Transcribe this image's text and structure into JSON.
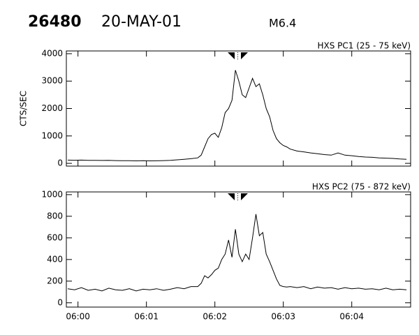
{
  "header": {
    "id": "26480",
    "date": "20-MAY-01",
    "class": "M6.4"
  },
  "chart_data": [
    {
      "type": "line",
      "title": "HXS PC1 (25 - 75 keV)",
      "y_label": "CTS/SEC",
      "x": [
        -0.15,
        -0.05,
        0.05,
        0.15,
        0.25,
        0.35,
        0.45,
        0.55,
        0.65,
        0.75,
        0.85,
        0.95,
        1.05,
        1.15,
        1.25,
        1.35,
        1.45,
        1.55,
        1.65,
        1.75,
        1.8,
        1.85,
        1.9,
        1.95,
        2.0,
        2.05,
        2.1,
        2.15,
        2.2,
        2.25,
        2.3,
        2.35,
        2.4,
        2.45,
        2.5,
        2.55,
        2.6,
        2.65,
        2.7,
        2.75,
        2.8,
        2.85,
        2.9,
        2.95,
        3.0,
        3.05,
        3.1,
        3.2,
        3.3,
        3.4,
        3.5,
        3.6,
        3.7,
        3.8,
        3.9,
        4.0,
        4.1,
        4.2,
        4.3,
        4.4,
        4.5,
        4.6,
        4.7,
        4.8
      ],
      "values": [
        120,
        115,
        118,
        110,
        112,
        105,
        108,
        100,
        95,
        98,
        92,
        96,
        90,
        94,
        100,
        110,
        130,
        150,
        170,
        200,
        300,
        600,
        900,
        1050,
        1100,
        950,
        1300,
        1850,
        2000,
        2300,
        3400,
        3000,
        2500,
        2400,
        2750,
        3100,
        2800,
        2900,
        2500,
        2000,
        1700,
        1200,
        900,
        750,
        650,
        600,
        520,
        450,
        420,
        380,
        350,
        320,
        300,
        380,
        300,
        280,
        250,
        230,
        220,
        200,
        190,
        180,
        160,
        150
      ],
      "color": "#000000",
      "xlim": [
        -0.17,
        4.86
      ],
      "ylim": [
        -100,
        4100
      ],
      "yticks": [
        0,
        1000,
        2000,
        3000,
        4000
      ]
    },
    {
      "type": "line",
      "title": "HXS PC2 (75 - 872 keV)",
      "x": [
        -0.15,
        -0.05,
        0.05,
        0.15,
        0.25,
        0.35,
        0.45,
        0.55,
        0.65,
        0.75,
        0.85,
        0.95,
        1.05,
        1.15,
        1.25,
        1.35,
        1.45,
        1.55,
        1.65,
        1.75,
        1.8,
        1.85,
        1.9,
        1.95,
        2.0,
        2.05,
        2.1,
        2.15,
        2.2,
        2.25,
        2.3,
        2.35,
        2.4,
        2.45,
        2.5,
        2.55,
        2.6,
        2.65,
        2.7,
        2.75,
        2.8,
        2.85,
        2.9,
        2.95,
        3.0,
        3.05,
        3.1,
        3.2,
        3.3,
        3.4,
        3.5,
        3.6,
        3.7,
        3.8,
        3.9,
        4.0,
        4.1,
        4.2,
        4.3,
        4.4,
        4.5,
        4.6,
        4.7,
        4.8
      ],
      "values": [
        130,
        120,
        140,
        115,
        125,
        110,
        135,
        120,
        115,
        130,
        110,
        125,
        120,
        130,
        115,
        125,
        140,
        130,
        150,
        150,
        180,
        250,
        230,
        260,
        300,
        320,
        400,
        450,
        580,
        420,
        680,
        450,
        380,
        450,
        400,
        600,
        820,
        620,
        650,
        450,
        380,
        300,
        220,
        160,
        150,
        145,
        150,
        140,
        150,
        130,
        145,
        135,
        140,
        125,
        140,
        130,
        135,
        125,
        130,
        120,
        135,
        120,
        125,
        120
      ],
      "color": "#000000",
      "xlim": [
        -0.17,
        4.86
      ],
      "ylim": [
        -40,
        1025
      ],
      "yticks": [
        0,
        200,
        400,
        600,
        800,
        1000
      ],
      "xticks": [
        {
          "value": 0,
          "label": "06:00"
        },
        {
          "value": 1,
          "label": "06:01"
        },
        {
          "value": 2,
          "label": "06:02"
        },
        {
          "value": 3,
          "label": "06:03"
        },
        {
          "value": 4,
          "label": "06:04"
        }
      ]
    }
  ]
}
